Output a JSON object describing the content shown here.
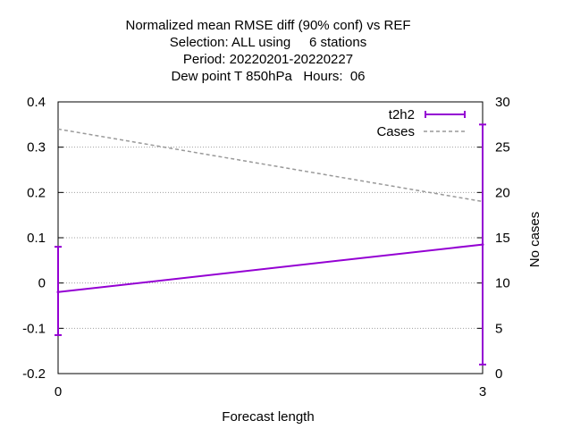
{
  "chart_data": {
    "type": "line",
    "title_lines": [
      "Normalized mean RMSE diff (90% conf) vs REF",
      "Selection: ALL using     6 stations",
      "Period: 20220201-20220227",
      "Dew point T 850hPa   Hours:  06"
    ],
    "xlabel": "Forecast length",
    "ylabel": "",
    "y2label": "No cases",
    "x": [
      0,
      3
    ],
    "x_ticks": [
      "0",
      "3"
    ],
    "xlim": [
      0,
      3
    ],
    "ylim": [
      -0.2,
      0.4
    ],
    "y_ticks": [
      "-0.2",
      "-0.1",
      "0",
      "0.1",
      "0.2",
      "0.3",
      "0.4"
    ],
    "y2lim": [
      0,
      30
    ],
    "y2_ticks": [
      "0",
      "5",
      "10",
      "15",
      "20",
      "25",
      "30"
    ],
    "grid": true,
    "legend_position": "top-right",
    "series": [
      {
        "name": "t2h2",
        "axis": "left",
        "color": "#9400d3",
        "style": "solid-errorbars",
        "values": [
          -0.02,
          0.085
        ],
        "error_low": [
          -0.115,
          -0.18
        ],
        "error_high": [
          0.08,
          0.35
        ]
      },
      {
        "name": "Cases",
        "axis": "right",
        "color": "#999999",
        "style": "dashed",
        "values": [
          27,
          19
        ]
      }
    ]
  }
}
